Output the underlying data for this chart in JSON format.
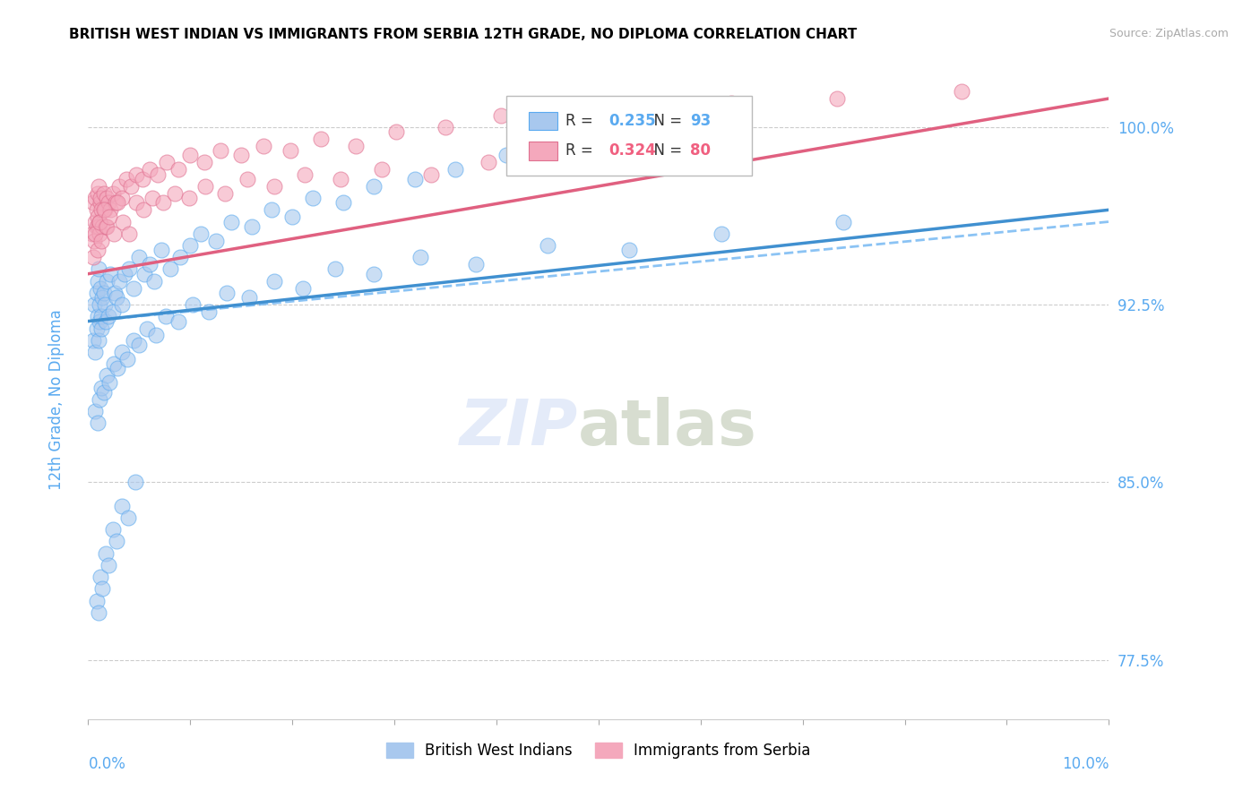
{
  "title": "BRITISH WEST INDIAN VS IMMIGRANTS FROM SERBIA 12TH GRADE, NO DIPLOMA CORRELATION CHART",
  "source": "Source: ZipAtlas.com",
  "ylabel": "12th Grade, No Diploma",
  "xlim": [
    0.0,
    10.0
  ],
  "ylim": [
    75.0,
    103.0
  ],
  "yticks": [
    77.5,
    85.0,
    92.5,
    100.0
  ],
  "ytick_labels": [
    "77.5%",
    "85.0%",
    "92.5%",
    "100.0%"
  ],
  "series1_label": "British West Indians",
  "series1_color": "#A8C8EE",
  "series1_line_color": "#4090D0",
  "series1_R": 0.235,
  "series1_N": 93,
  "series2_label": "Immigrants from Serbia",
  "series2_color": "#F4A8BC",
  "series2_line_color": "#E06080",
  "series2_R": 0.324,
  "series2_N": 80,
  "legend_color1": "#5AAAF0",
  "legend_color2": "#F06080",
  "scatter1_x": [
    0.05,
    0.06,
    0.07,
    0.08,
    0.08,
    0.09,
    0.09,
    0.1,
    0.1,
    0.11,
    0.11,
    0.12,
    0.13,
    0.13,
    0.14,
    0.15,
    0.16,
    0.17,
    0.18,
    0.2,
    0.22,
    0.24,
    0.26,
    0.28,
    0.3,
    0.33,
    0.36,
    0.4,
    0.44,
    0.5,
    0.55,
    0.6,
    0.65,
    0.72,
    0.8,
    0.9,
    1.0,
    1.1,
    1.25,
    1.4,
    1.6,
    1.8,
    2.0,
    2.2,
    2.5,
    2.8,
    3.2,
    3.6,
    4.1,
    4.7,
    5.4,
    6.3,
    0.07,
    0.09,
    0.11,
    0.13,
    0.15,
    0.18,
    0.21,
    0.25,
    0.29,
    0.33,
    0.38,
    0.44,
    0.5,
    0.58,
    0.66,
    0.76,
    0.88,
    1.02,
    1.18,
    1.36,
    1.58,
    1.82,
    2.1,
    2.42,
    2.8,
    3.25,
    3.8,
    4.5,
    5.3,
    6.2,
    7.4,
    0.08,
    0.1,
    0.12,
    0.14,
    0.17,
    0.2,
    0.24,
    0.28,
    0.33,
    0.39,
    0.46
  ],
  "scatter1_y": [
    91.0,
    92.5,
    90.5,
    93.0,
    91.5,
    92.0,
    93.5,
    91.0,
    94.0,
    92.5,
    91.8,
    93.2,
    92.0,
    91.5,
    92.8,
    93.0,
    92.5,
    91.8,
    93.5,
    92.0,
    93.8,
    92.2,
    93.0,
    92.8,
    93.5,
    92.5,
    93.8,
    94.0,
    93.2,
    94.5,
    93.8,
    94.2,
    93.5,
    94.8,
    94.0,
    94.5,
    95.0,
    95.5,
    95.2,
    96.0,
    95.8,
    96.5,
    96.2,
    97.0,
    96.8,
    97.5,
    97.8,
    98.2,
    98.8,
    99.2,
    99.8,
    100.5,
    88.0,
    87.5,
    88.5,
    89.0,
    88.8,
    89.5,
    89.2,
    90.0,
    89.8,
    90.5,
    90.2,
    91.0,
    90.8,
    91.5,
    91.2,
    92.0,
    91.8,
    92.5,
    92.2,
    93.0,
    92.8,
    93.5,
    93.2,
    94.0,
    93.8,
    94.5,
    94.2,
    95.0,
    94.8,
    95.5,
    96.0,
    80.0,
    79.5,
    81.0,
    80.5,
    82.0,
    81.5,
    83.0,
    82.5,
    84.0,
    83.5,
    85.0
  ],
  "scatter2_x": [
    0.04,
    0.05,
    0.06,
    0.07,
    0.07,
    0.08,
    0.08,
    0.09,
    0.09,
    0.1,
    0.1,
    0.11,
    0.11,
    0.12,
    0.12,
    0.13,
    0.14,
    0.15,
    0.16,
    0.17,
    0.18,
    0.2,
    0.22,
    0.24,
    0.27,
    0.3,
    0.33,
    0.37,
    0.42,
    0.47,
    0.53,
    0.6,
    0.68,
    0.77,
    0.88,
    1.0,
    1.14,
    1.3,
    1.5,
    1.72,
    1.98,
    2.28,
    2.62,
    3.02,
    3.5,
    4.04,
    4.68,
    5.42,
    6.3,
    7.34,
    8.56,
    0.05,
    0.07,
    0.09,
    0.11,
    0.13,
    0.15,
    0.18,
    0.21,
    0.25,
    0.29,
    0.34,
    0.4,
    0.47,
    0.54,
    0.63,
    0.73,
    0.85,
    0.99,
    1.15,
    1.34,
    1.56,
    1.82,
    2.12,
    2.47,
    2.88,
    3.36,
    3.92,
    4.58,
    5.36
  ],
  "scatter2_y": [
    95.5,
    96.8,
    95.2,
    97.0,
    96.0,
    96.5,
    95.8,
    97.2,
    96.2,
    95.8,
    97.5,
    96.0,
    95.5,
    96.8,
    97.0,
    96.5,
    95.8,
    97.2,
    96.5,
    95.8,
    97.0,
    96.8,
    96.5,
    97.2,
    96.8,
    97.5,
    97.0,
    97.8,
    97.5,
    98.0,
    97.8,
    98.2,
    98.0,
    98.5,
    98.2,
    98.8,
    98.5,
    99.0,
    98.8,
    99.2,
    99.0,
    99.5,
    99.2,
    99.8,
    100.0,
    100.5,
    100.2,
    100.8,
    101.0,
    101.2,
    101.5,
    94.5,
    95.5,
    94.8,
    96.0,
    95.2,
    96.5,
    95.8,
    96.2,
    95.5,
    96.8,
    96.0,
    95.5,
    96.8,
    96.5,
    97.0,
    96.8,
    97.2,
    97.0,
    97.5,
    97.2,
    97.8,
    97.5,
    98.0,
    97.8,
    98.2,
    98.0,
    98.5,
    98.8,
    99.2
  ],
  "trend1_x0": 0.0,
  "trend1_y0": 91.8,
  "trend1_x1": 10.0,
  "trend1_y1": 96.5,
  "trend2_x0": 0.0,
  "trend2_y0": 93.8,
  "trend2_x1": 10.0,
  "trend2_y1": 101.2,
  "dash_x0": 0.0,
  "dash_y0": 91.8,
  "dash_x1": 10.0,
  "dash_y1": 96.0,
  "watermark_zip": "ZIP",
  "watermark_atlas": "atlas"
}
